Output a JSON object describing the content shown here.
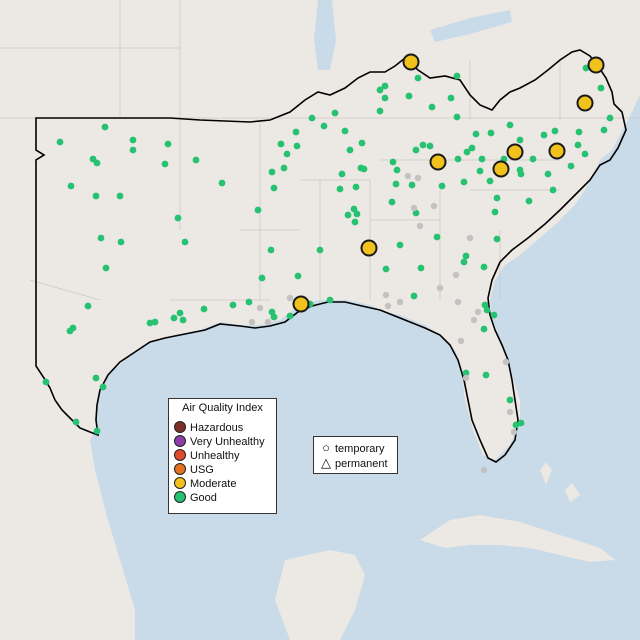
{
  "legend": {
    "title": "Air Quality Index",
    "items": [
      {
        "label": "Hazardous",
        "color": "#7e2f2a"
      },
      {
        "label": "Very Unhealthy",
        "color": "#8e3fa7"
      },
      {
        "label": "Unhealthy",
        "color": "#e04a2a"
      },
      {
        "label": "USG",
        "color": "#e3741f"
      },
      {
        "label": "Moderate",
        "color": "#f1c21c"
      },
      {
        "label": "Good",
        "color": "#27c172"
      }
    ]
  },
  "shape_legend": {
    "items": [
      {
        "label": "temporary",
        "glyph": "circle-outline"
      },
      {
        "label": "permanent",
        "glyph": "triangle-outline"
      }
    ]
  },
  "colors": {
    "water": "#c9dbe9",
    "land": "#ece8e3",
    "good": "#27c172",
    "moderate": "#f1c21c",
    "no_data": "#c2c2c2"
  }
}
